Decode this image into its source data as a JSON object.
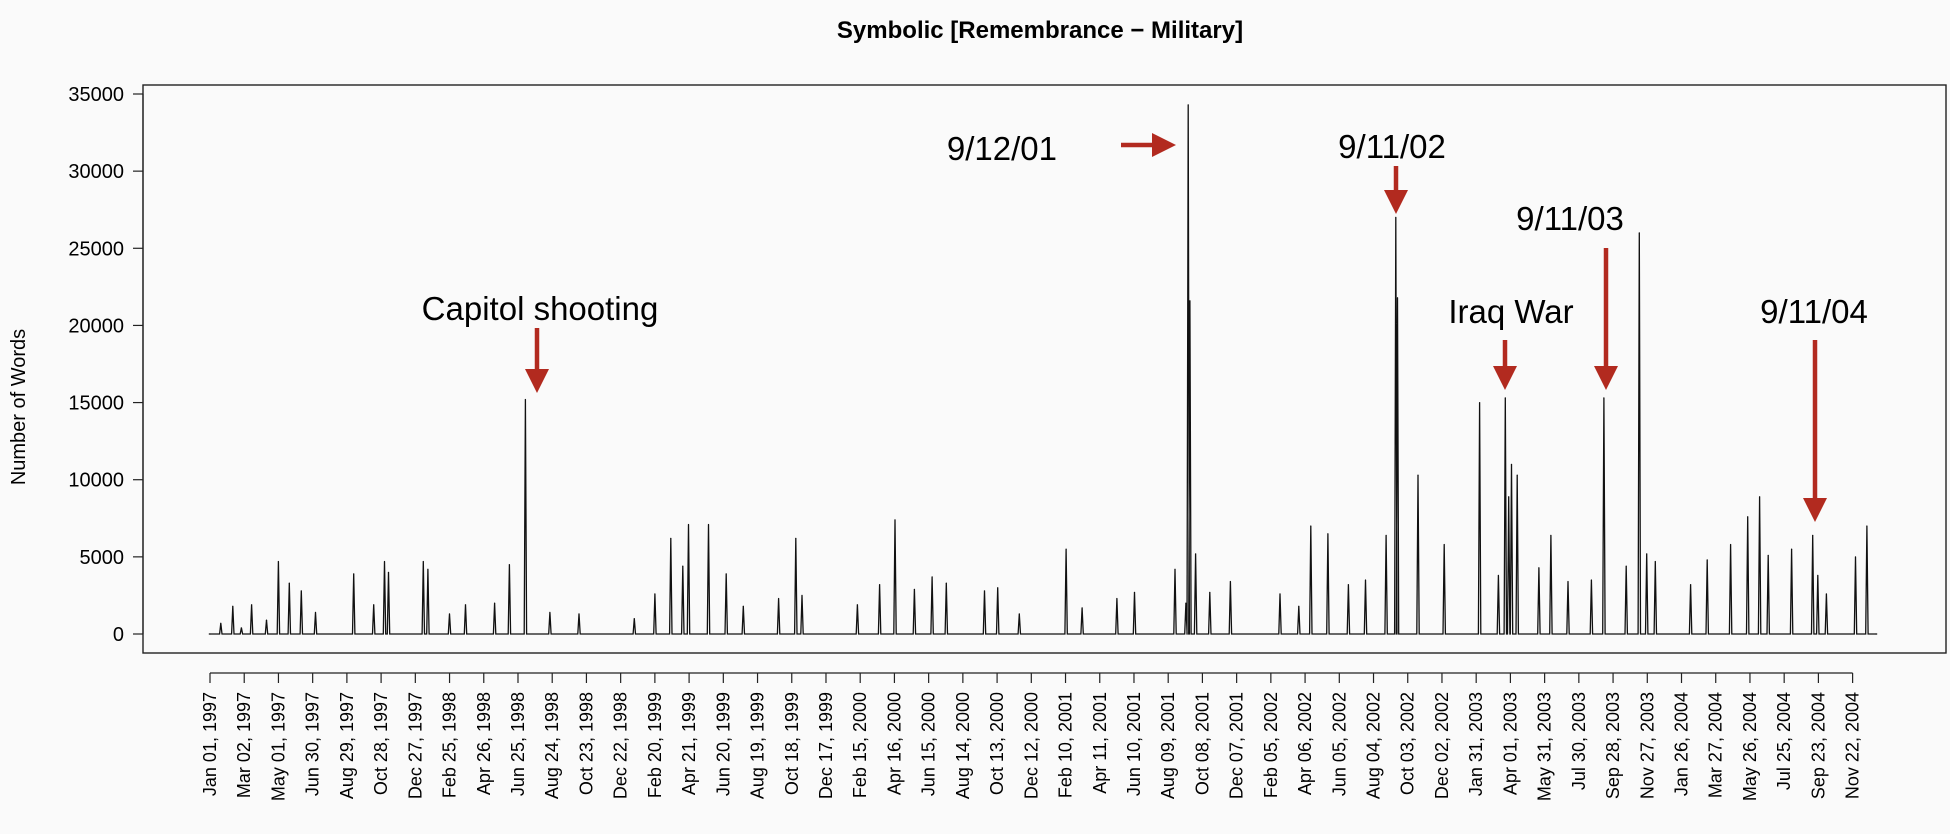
{
  "chart_data": {
    "type": "line",
    "title": "Symbolic [Remembrance − Military]",
    "xlabel": "",
    "ylabel": "Number of Words",
    "ylim": [
      0,
      35000
    ],
    "yticks": [
      0,
      5000,
      10000,
      15000,
      20000,
      25000,
      30000,
      35000
    ],
    "xlim": [
      "1997-01-01",
      "2004-12-31"
    ],
    "x_tick_labels": [
      "Jan 01, 1997",
      "Mar 02, 1997",
      "May 01, 1997",
      "Jun 30, 1997",
      "Aug 29, 1997",
      "Oct 28, 1997",
      "Dec 27, 1997",
      "Feb 25, 1998",
      "Apr 26, 1998",
      "Jun 25, 1998",
      "Aug 24, 1998",
      "Oct 23, 1998",
      "Dec 22, 1998",
      "Feb 20, 1999",
      "Apr 21, 1999",
      "Jun 20, 1999",
      "Aug 19, 1999",
      "Oct 18, 1999",
      "Dec 17, 1999",
      "Feb 15, 2000",
      "Apr 16, 2000",
      "Jun 15, 2000",
      "Aug 14, 2000",
      "Oct 13, 2000",
      "Dec 12, 2000",
      "Feb 10, 2001",
      "Apr 11, 2001",
      "Jun 10, 2001",
      "Aug 09, 2001",
      "Oct 08, 2001",
      "Dec 07, 2001",
      "Feb 05, 2002",
      "Apr 06, 2002",
      "Jun 05, 2002",
      "Aug 04, 2002",
      "Oct 03, 2002",
      "Dec 02, 2002",
      "Jan 31, 2003",
      "Apr 01, 2003",
      "May 31, 2003",
      "Jul 30, 2003",
      "Sep 28, 2003",
      "Nov 27, 2003",
      "Jan 26, 2004",
      "Mar 27, 2004",
      "May 26, 2004",
      "Jul 25, 2004",
      "Sep 23, 2004",
      "Nov 22, 2004"
    ],
    "series": [
      {
        "points": [
          [
            "1997-01-01",
            0
          ],
          [
            "1997-01-20",
            700
          ],
          [
            "1997-02-10",
            1800
          ],
          [
            "1997-02-25",
            400
          ],
          [
            "1997-03-15",
            1900
          ],
          [
            "1997-04-10",
            900
          ],
          [
            "1997-05-01",
            4700
          ],
          [
            "1997-05-20",
            3300
          ],
          [
            "1997-06-10",
            2800
          ],
          [
            "1997-07-05",
            1400
          ],
          [
            "1997-09-10",
            3900
          ],
          [
            "1997-10-15",
            1900
          ],
          [
            "1997-11-03",
            4700
          ],
          [
            "1997-11-10",
            4000
          ],
          [
            "1998-01-10",
            4700
          ],
          [
            "1998-01-18",
            4200
          ],
          [
            "1998-02-25",
            1300
          ],
          [
            "1998-03-25",
            1900
          ],
          [
            "1998-05-15",
            2000
          ],
          [
            "1998-06-10",
            4500
          ],
          [
            "1998-07-08",
            15200
          ],
          [
            "1998-08-20",
            1400
          ],
          [
            "1998-10-10",
            1300
          ],
          [
            "1999-01-15",
            1000
          ],
          [
            "1999-02-20",
            2600
          ],
          [
            "1999-03-20",
            6200
          ],
          [
            "1999-04-10",
            4400
          ],
          [
            "1999-04-20",
            7100
          ],
          [
            "1999-05-25",
            7100
          ],
          [
            "1999-06-25",
            3900
          ],
          [
            "1999-07-25",
            1800
          ],
          [
            "1999-09-25",
            2300
          ],
          [
            "1999-10-25",
            6200
          ],
          [
            "1999-11-05",
            2500
          ],
          [
            "2000-02-10",
            1900
          ],
          [
            "2000-03-20",
            3200
          ],
          [
            "2000-04-16",
            7400
          ],
          [
            "2000-05-20",
            2900
          ],
          [
            "2000-06-20",
            3700
          ],
          [
            "2000-07-15",
            3300
          ],
          [
            "2000-09-20",
            2800
          ],
          [
            "2000-10-13",
            3000
          ],
          [
            "2000-11-20",
            1300
          ],
          [
            "2001-02-10",
            5500
          ],
          [
            "2001-03-10",
            1700
          ],
          [
            "2001-05-10",
            2300
          ],
          [
            "2001-06-10",
            2700
          ],
          [
            "2001-08-20",
            4200
          ],
          [
            "2001-09-08",
            2000
          ],
          [
            "2001-09-12",
            34300
          ],
          [
            "2001-09-15",
            21600
          ],
          [
            "2001-09-25",
            5200
          ],
          [
            "2001-10-20",
            2700
          ],
          [
            "2001-11-25",
            3400
          ],
          [
            "2002-02-20",
            2600
          ],
          [
            "2002-03-25",
            1800
          ],
          [
            "2002-04-15",
            7000
          ],
          [
            "2002-05-15",
            6500
          ],
          [
            "2002-06-20",
            3200
          ],
          [
            "2002-07-20",
            3500
          ],
          [
            "2002-08-25",
            6400
          ],
          [
            "2002-09-11",
            27000
          ],
          [
            "2002-09-14",
            21800
          ],
          [
            "2002-10-20",
            10300
          ],
          [
            "2002-12-05",
            5800
          ],
          [
            "2003-02-05",
            15000
          ],
          [
            "2003-03-10",
            3800
          ],
          [
            "2003-03-22",
            15300
          ],
          [
            "2003-03-28",
            8900
          ],
          [
            "2003-04-02",
            11000
          ],
          [
            "2003-04-12",
            10300
          ],
          [
            "2003-05-20",
            4300
          ],
          [
            "2003-06-10",
            6400
          ],
          [
            "2003-07-10",
            3400
          ],
          [
            "2003-08-20",
            3500
          ],
          [
            "2003-09-11",
            15300
          ],
          [
            "2003-10-20",
            4400
          ],
          [
            "2003-11-12",
            26000
          ],
          [
            "2003-11-25",
            5200
          ],
          [
            "2003-12-10",
            4700
          ],
          [
            "2004-02-10",
            3200
          ],
          [
            "2004-03-10",
            4800
          ],
          [
            "2004-04-20",
            5800
          ],
          [
            "2004-05-20",
            7600
          ],
          [
            "2004-06-10",
            8900
          ],
          [
            "2004-06-25",
            5100
          ],
          [
            "2004-08-05",
            5500
          ],
          [
            "2004-09-11",
            6400
          ],
          [
            "2004-09-20",
            3800
          ],
          [
            "2004-10-05",
            2600
          ],
          [
            "2004-11-25",
            5000
          ],
          [
            "2004-12-15",
            7000
          ],
          [
            "2004-12-31",
            0
          ]
        ]
      }
    ],
    "annotations": [
      {
        "text": "Capitol shooting",
        "date": "1998-07-24",
        "arrow": "down"
      },
      {
        "text": "9/12/01",
        "date": "2001-09-12",
        "arrow": "right"
      },
      {
        "text": "9/11/02",
        "date": "2002-09-11",
        "arrow": "down"
      },
      {
        "text": "Iraq War",
        "date": "2003-03-20",
        "arrow": "down"
      },
      {
        "text": "9/11/03",
        "date": "2003-09-11",
        "arrow": "down"
      },
      {
        "text": "9/11/04",
        "date": "2004-09-11",
        "arrow": "down"
      }
    ],
    "grid": false,
    "legend": "none",
    "colors": {
      "line": "#111111",
      "arrow": "#b22a1f",
      "background": "#fafafa"
    }
  }
}
